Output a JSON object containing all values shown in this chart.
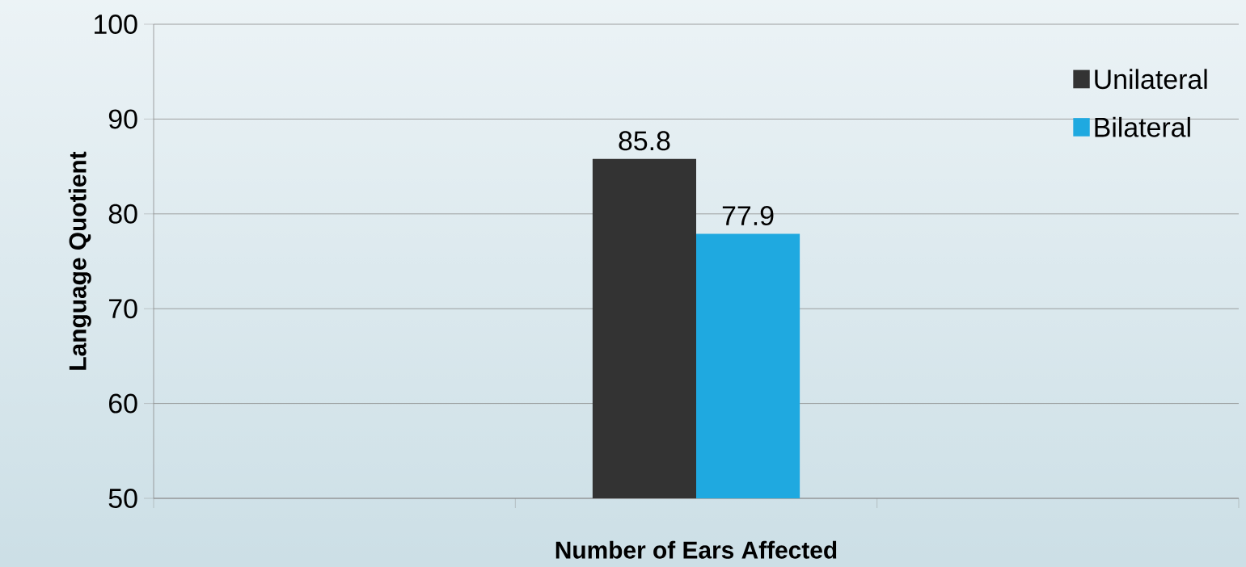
{
  "chart_data": {
    "type": "bar",
    "xlabel": "Number of Ears Affected",
    "ylabel": "Language Quotient",
    "categories": [
      null,
      null,
      null
    ],
    "series": [
      {
        "name": "Unilateral",
        "color": "#333333",
        "values": [
          null,
          85.8,
          null
        ]
      },
      {
        "name": "Bilateral",
        "color": "#1fa9e0",
        "values": [
          null,
          77.9,
          null
        ]
      }
    ],
    "ylim": [
      50,
      100
    ],
    "yticks": [
      50,
      60,
      70,
      80,
      90,
      100
    ],
    "grid": "y",
    "legend": "top right",
    "data_labels": true
  }
}
